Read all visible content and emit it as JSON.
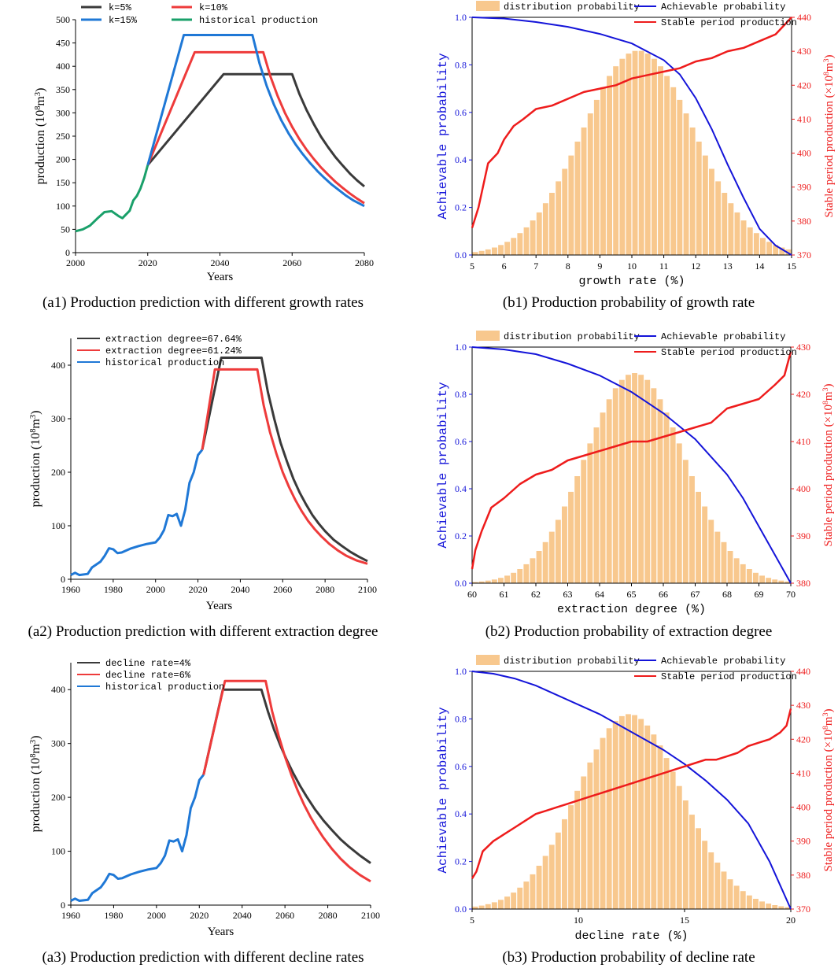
{
  "chart_data": [
    {
      "id": "a1",
      "type": "line",
      "caption": "(a1) Production prediction with different growth rates",
      "xlabel": "Years",
      "ylabel": "production (10^8m^3)",
      "ylabel_base": "production (10",
      "ylabel_sup1": "8",
      "ylabel_mid": "m",
      "ylabel_sup2": "3",
      "ylabel_end": ")",
      "xlim": [
        2000,
        2080
      ],
      "ylim": [
        0,
        500
      ],
      "xticks": [
        2000,
        2020,
        2040,
        2060,
        2080
      ],
      "yticks": [
        0,
        50,
        100,
        150,
        200,
        250,
        300,
        350,
        400,
        450,
        500
      ],
      "legend": [
        "k=5%",
        "k=10%",
        "k=15%",
        "historical production"
      ],
      "series": [
        {
          "name": "historical production",
          "color": "#1aa06a",
          "x": [
            2000,
            2002,
            2004,
            2006,
            2008,
            2010,
            2012,
            2013,
            2015,
            2016,
            2017,
            2018,
            2019,
            2020
          ],
          "y": [
            46,
            50,
            58,
            73,
            87,
            89,
            78,
            74,
            90,
            112,
            122,
            138,
            160,
            188
          ]
        },
        {
          "name": "k=5%",
          "color": "#3a3a3a",
          "x": [
            2020,
            2041,
            2060,
            2062,
            2064,
            2066,
            2068,
            2070,
            2072,
            2074,
            2076,
            2078,
            2080
          ],
          "y": [
            188,
            383,
            383,
            341,
            306,
            276,
            249,
            226,
            205,
            187,
            170,
            155,
            142
          ]
        },
        {
          "name": "k=10%",
          "color": "#ee3b3b",
          "x": [
            2020,
            2033,
            2052,
            2054,
            2056,
            2058,
            2060,
            2062,
            2064,
            2066,
            2068,
            2070,
            2072,
            2074,
            2076,
            2078,
            2080
          ],
          "y": [
            188,
            430,
            430,
            378,
            336,
            300,
            270,
            244,
            221,
            201,
            183,
            167,
            152,
            139,
            127,
            116,
            106
          ]
        },
        {
          "name": "k=15%",
          "color": "#1f78d6",
          "x": [
            2020,
            2030,
            2049,
            2051,
            2053,
            2055,
            2057,
            2059,
            2061,
            2063,
            2065,
            2067,
            2069,
            2071,
            2073,
            2075,
            2077,
            2080
          ],
          "y": [
            188,
            467,
            467,
            405,
            357,
            317,
            284,
            256,
            232,
            211,
            192,
            175,
            160,
            146,
            134,
            122,
            112,
            100
          ]
        }
      ]
    },
    {
      "id": "b1",
      "type": "bar",
      "caption": "(b1) Production probability of growth rate",
      "xlabel": "growth rate (%)",
      "ylabel": "Achievable probability",
      "y2label": "Stable period production (×10^8m^3)",
      "y2label_base": "Stable period production (×10",
      "y2label_sup1": "8",
      "y2label_mid": "m",
      "y2label_sup2": "3",
      "y2label_end": ")",
      "xlim": [
        5,
        15
      ],
      "ylim": [
        0,
        1.0
      ],
      "y2lim": [
        370,
        440
      ],
      "xticks": [
        5,
        6,
        7,
        8,
        9,
        10,
        11,
        12,
        13,
        14,
        15
      ],
      "yticks": [
        "0.0",
        "0.2",
        "0.4",
        "0.6",
        "0.8",
        "1.0"
      ],
      "y2ticks": [
        370,
        380,
        390,
        400,
        410,
        420,
        430,
        440
      ],
      "legend": [
        "distribution probability",
        "Achievable probability",
        "Stable period production"
      ],
      "bar_color": "#f8c88e",
      "bar_center": 10.2,
      "bar_sigma": 1.75,
      "bar_peak": 0.86,
      "bar_count": 50,
      "achievable": {
        "name": "Achievable probability",
        "color": "#1414d9",
        "x": [
          5,
          6,
          7,
          8,
          9,
          10,
          11,
          11.5,
          12,
          12.5,
          13,
          13.5,
          14,
          14.5,
          15
        ],
        "y": [
          1.0,
          0.995,
          0.98,
          0.96,
          0.93,
          0.89,
          0.82,
          0.76,
          0.66,
          0.53,
          0.38,
          0.24,
          0.11,
          0.04,
          0.0
        ]
      },
      "stable": {
        "name": "Stable period production",
        "color": "#ee1c1c",
        "x": [
          5,
          5.2,
          5.5,
          5.8,
          6.0,
          6.3,
          6.6,
          7.0,
          7.5,
          8.0,
          8.5,
          9.0,
          9.5,
          10.0,
          10.5,
          11.0,
          11.5,
          12.0,
          12.5,
          13.0,
          13.5,
          14.0,
          14.5,
          15.0
        ],
        "y": [
          378,
          384,
          397,
          400,
          404,
          408,
          410,
          413,
          414,
          416,
          418,
          419,
          420,
          422,
          423,
          424,
          425,
          427,
          428,
          430,
          431,
          433,
          435,
          440
        ]
      }
    },
    {
      "id": "a2",
      "type": "line",
      "caption": "(a2) Production prediction with different extraction degree",
      "xlabel": "Years",
      "ylabel": "production (10^8m^3)",
      "ylabel_base": "production (10",
      "ylabel_sup1": "8",
      "ylabel_mid": "m",
      "ylabel_sup2": "3",
      "ylabel_end": ")",
      "xlim": [
        1960,
        2100
      ],
      "ylim": [
        0,
        450
      ],
      "xticks": [
        1960,
        1980,
        2000,
        2020,
        2040,
        2060,
        2080,
        2100
      ],
      "yticks": [
        0,
        100,
        200,
        300,
        400
      ],
      "legend": [
        "extraction degree=67.64%",
        "extraction degree=61.24%",
        "historical production"
      ],
      "series": [
        {
          "name": "historical production",
          "color": "#1f78d6",
          "x": [
            1960,
            1962,
            1964,
            1968,
            1970,
            1974,
            1976,
            1978,
            1980,
            1982,
            1984,
            1988,
            1992,
            1996,
            2000,
            2002,
            2004,
            2006,
            2008,
            2010,
            2012,
            2014,
            2016,
            2018,
            2020,
            2022
          ],
          "y": [
            8,
            12,
            8,
            10,
            22,
            33,
            44,
            58,
            56,
            49,
            50,
            57,
            62,
            66,
            69,
            78,
            92,
            120,
            118,
            122,
            100,
            130,
            180,
            200,
            232,
            242
          ]
        },
        {
          "name": "extraction degree=67.64%",
          "color": "#3a3a3a",
          "x": [
            2022,
            2031,
            2050,
            2053,
            2056,
            2059,
            2062,
            2065,
            2068,
            2071,
            2074,
            2077,
            2080,
            2084,
            2088,
            2092,
            2096,
            2100
          ],
          "y": [
            242,
            414,
            414,
            350,
            300,
            255,
            220,
            188,
            162,
            140,
            120,
            104,
            90,
            74,
            62,
            51,
            42,
            34
          ]
        },
        {
          "name": "extraction degree=61.24%",
          "color": "#ee3b3b",
          "x": [
            2022,
            2028,
            2048,
            2051,
            2054,
            2057,
            2060,
            2063,
            2066,
            2069,
            2072,
            2075,
            2078,
            2082,
            2086,
            2090,
            2095,
            2100
          ],
          "y": [
            242,
            392,
            392,
            325,
            275,
            235,
            200,
            172,
            148,
            127,
            109,
            94,
            81,
            66,
            54,
            44,
            35,
            29
          ]
        }
      ]
    },
    {
      "id": "b2",
      "type": "bar",
      "caption": "(b2) Production probability of extraction degree",
      "xlabel": "extraction degree (%)",
      "ylabel": "Achievable probability",
      "y2label": "Stable period production (×10^8m^3)",
      "y2label_base": "Stable period production (×10",
      "y2label_sup1": "8",
      "y2label_mid": "m",
      "y2label_sup2": "3",
      "y2label_end": ")",
      "xlim": [
        60,
        70
      ],
      "ylim": [
        0,
        1.0
      ],
      "y2lim": [
        380,
        430
      ],
      "xticks": [
        60,
        61,
        62,
        63,
        64,
        65,
        66,
        67,
        68,
        69,
        70
      ],
      "yticks": [
        "0.0",
        "0.2",
        "0.4",
        "0.6",
        "0.8",
        "1.0"
      ],
      "y2ticks": [
        380,
        390,
        400,
        410,
        420,
        430
      ],
      "legend": [
        "distribution probability",
        "Achievable probability",
        "Stable period production"
      ],
      "bar_color": "#f8c88e",
      "bar_center": 65.1,
      "bar_sigma": 1.55,
      "bar_peak": 0.89,
      "bar_count": 50,
      "achievable": {
        "name": "Achievable probability",
        "color": "#1414d9",
        "x": [
          60,
          61,
          62,
          63,
          64,
          65,
          66,
          67,
          68,
          68.5,
          69,
          69.5,
          70
        ],
        "y": [
          1.0,
          0.99,
          0.97,
          0.93,
          0.88,
          0.81,
          0.72,
          0.61,
          0.46,
          0.36,
          0.24,
          0.12,
          0.0
        ]
      },
      "stable": {
        "name": "Stable period production",
        "color": "#ee1c1c",
        "x": [
          60,
          60.1,
          60.3,
          60.6,
          61.0,
          61.5,
          62.0,
          62.5,
          63.0,
          63.5,
          64.0,
          64.5,
          65.0,
          65.5,
          66.0,
          66.5,
          67.0,
          67.5,
          68.0,
          68.5,
          69.0,
          69.5,
          69.8,
          70.0
        ],
        "y": [
          383,
          387,
          391,
          396,
          398,
          401,
          403,
          404,
          406,
          407,
          408,
          409,
          410,
          410,
          411,
          412,
          413,
          414,
          417,
          418,
          419,
          422,
          424,
          429
        ]
      }
    },
    {
      "id": "a3",
      "type": "line",
      "caption": "(a3) Production prediction with different decline rates",
      "xlabel": "Years",
      "ylabel": "production (10^8m^3)",
      "ylabel_base": "production (10",
      "ylabel_sup1": "8",
      "ylabel_mid": "m",
      "ylabel_sup2": "3",
      "ylabel_end": ")",
      "xlim": [
        1960,
        2100
      ],
      "ylim": [
        0,
        450
      ],
      "xticks": [
        1960,
        1980,
        2000,
        2020,
        2040,
        2060,
        2080,
        2100
      ],
      "yticks": [
        0,
        100,
        200,
        300,
        400
      ],
      "legend": [
        "decline rate=4%",
        "decline rate=6%",
        "historical production"
      ],
      "series": [
        {
          "name": "historical production",
          "color": "#1f78d6",
          "x": [
            1960,
            1962,
            1964,
            1968,
            1970,
            1974,
            1976,
            1978,
            1980,
            1982,
            1984,
            1988,
            1992,
            1996,
            2000,
            2002,
            2004,
            2006,
            2008,
            2010,
            2012,
            2014,
            2016,
            2018,
            2020,
            2022
          ],
          "y": [
            8,
            12,
            8,
            10,
            22,
            33,
            44,
            58,
            56,
            49,
            50,
            57,
            62,
            66,
            69,
            78,
            92,
            120,
            118,
            122,
            100,
            130,
            180,
            200,
            232,
            242
          ]
        },
        {
          "name": "decline rate=4%",
          "color": "#3a3a3a",
          "x": [
            2022,
            2031,
            2049,
            2052,
            2055,
            2058,
            2061,
            2064,
            2067,
            2070,
            2074,
            2078,
            2082,
            2086,
            2090,
            2095,
            2100
          ],
          "y": [
            242,
            400,
            400,
            360,
            325,
            295,
            268,
            244,
            222,
            202,
            178,
            157,
            139,
            122,
            108,
            92,
            78
          ]
        },
        {
          "name": "decline rate=6%",
          "color": "#ee3b3b",
          "x": [
            2022,
            2032,
            2051,
            2054,
            2057,
            2060,
            2063,
            2066,
            2069,
            2072,
            2075,
            2078,
            2082,
            2086,
            2090,
            2095,
            2100
          ],
          "y": [
            242,
            416,
            416,
            360,
            315,
            276,
            242,
            212,
            186,
            163,
            143,
            125,
            104,
            86,
            71,
            56,
            44
          ]
        }
      ]
    },
    {
      "id": "b3",
      "type": "bar",
      "caption": "(b3) Production probability of decline rate",
      "xlabel": "decline rate (%)",
      "ylabel": "Achievable probability",
      "y2label": "Stable period production (×10^8m^3)",
      "y2label_base": "Stable period production (×10",
      "y2label_sup1": "8",
      "y2label_mid": "m",
      "y2label_sup2": "3",
      "y2label_end": ")",
      "xlim": [
        5,
        20
      ],
      "ylim": [
        0,
        1.0
      ],
      "y2lim": [
        370,
        440
      ],
      "xticks": [
        5,
        10,
        15,
        20
      ],
      "yticks": [
        "0.0",
        "0.2",
        "0.4",
        "0.6",
        "0.8",
        "1.0"
      ],
      "y2ticks": [
        370,
        380,
        390,
        400,
        410,
        420,
        430,
        440
      ],
      "legend": [
        "distribution probability",
        "Achievable probability",
        "Stable period production"
      ],
      "bar_color": "#f8c88e",
      "bar_center": 12.4,
      "bar_sigma": 2.45,
      "bar_peak": 0.82,
      "bar_count": 50,
      "achievable": {
        "name": "Achievable probability",
        "color": "#1414d9",
        "x": [
          5,
          6,
          7,
          8,
          9,
          10,
          11,
          12,
          13,
          14,
          15,
          16,
          17,
          18,
          19,
          19.5,
          20
        ],
        "y": [
          1.0,
          0.99,
          0.97,
          0.94,
          0.9,
          0.86,
          0.82,
          0.77,
          0.72,
          0.67,
          0.61,
          0.54,
          0.46,
          0.36,
          0.2,
          0.1,
          0.0
        ]
      },
      "stable": {
        "name": "Stable period production",
        "color": "#ee1c1c",
        "x": [
          5,
          5.2,
          5.5,
          6.0,
          6.5,
          7.0,
          7.5,
          8.0,
          8.5,
          9.0,
          9.5,
          10.0,
          10.5,
          11.0,
          11.5,
          12.0,
          12.5,
          13.0,
          13.5,
          14.0,
          14.5,
          15.0,
          15.5,
          16.0,
          16.5,
          17.0,
          17.5,
          18.0,
          18.5,
          19.0,
          19.5,
          19.8,
          20.0
        ],
        "y": [
          379,
          381,
          387,
          390,
          392,
          394,
          396,
          398,
          399,
          400,
          401,
          402,
          403,
          404,
          405,
          406,
          407,
          408,
          409,
          410,
          411,
          412,
          413,
          414,
          414,
          415,
          416,
          418,
          419,
          420,
          422,
          424,
          429
        ]
      }
    }
  ]
}
